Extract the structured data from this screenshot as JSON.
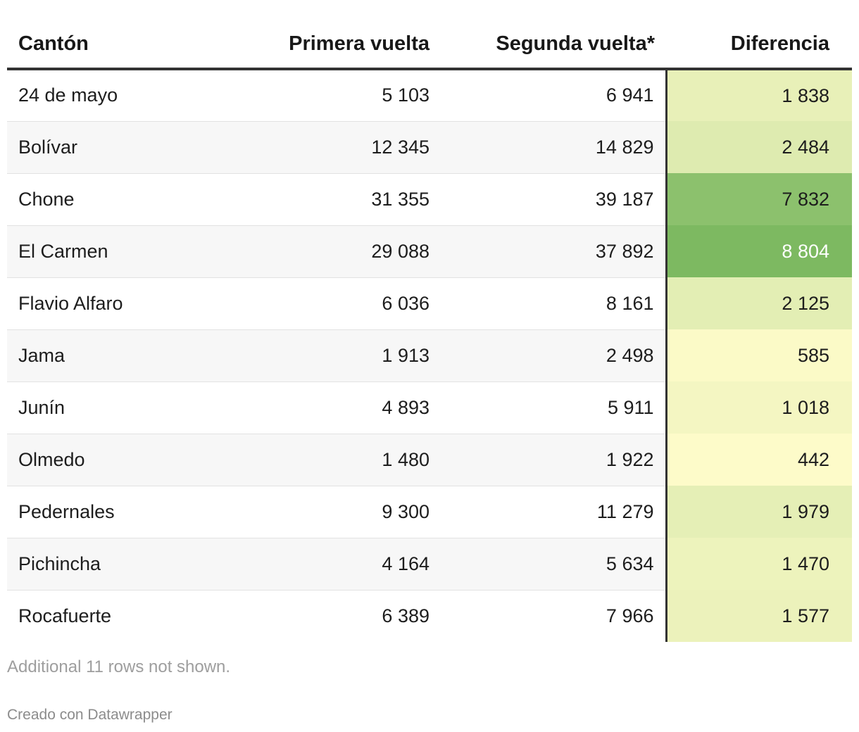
{
  "chart_data": {
    "type": "table",
    "columns": [
      "Cantón",
      "Primera vuelta",
      "Segunda vuelta*",
      "Diferencia"
    ],
    "rows": [
      {
        "canton": "24 de mayo",
        "primera": "5 103",
        "segunda": "6 941",
        "diferencia": "1 838",
        "diferencia_value": 1838
      },
      {
        "canton": "Bolívar",
        "primera": "12 345",
        "segunda": "14 829",
        "diferencia": "2 484",
        "diferencia_value": 2484
      },
      {
        "canton": "Chone",
        "primera": "31 355",
        "segunda": "39 187",
        "diferencia": "7 832",
        "diferencia_value": 7832
      },
      {
        "canton": "El Carmen",
        "primera": "29 088",
        "segunda": "37 892",
        "diferencia": "8 804",
        "diferencia_value": 8804
      },
      {
        "canton": "Flavio Alfaro",
        "primera": "6 036",
        "segunda": "8 161",
        "diferencia": "2 125",
        "diferencia_value": 2125
      },
      {
        "canton": "Jama",
        "primera": "1 913",
        "segunda": "2 498",
        "diferencia": "585",
        "diferencia_value": 585
      },
      {
        "canton": "Junín",
        "primera": "4 893",
        "segunda": "5 911",
        "diferencia": "1 018",
        "diferencia_value": 1018
      },
      {
        "canton": "Olmedo",
        "primera": "1 480",
        "segunda": "1 922",
        "diferencia": "442",
        "diferencia_value": 442
      },
      {
        "canton": "Pedernales",
        "primera": "9 300",
        "segunda": "11 279",
        "diferencia": "1 979",
        "diferencia_value": 1979
      },
      {
        "canton": "Pichincha",
        "primera": "4 164",
        "segunda": "5 634",
        "diferencia": "1 470",
        "diferencia_value": 1470
      },
      {
        "canton": "Rocafuerte",
        "primera": "6 389",
        "segunda": "7 966",
        "diferencia": "1 577",
        "diferencia_value": 1577
      }
    ],
    "heatmap_column": "Diferencia",
    "heatmap_colors": {
      "low": "#fdfbc9",
      "high": "#7db961"
    }
  },
  "footer": {
    "note": "Additional 11 rows not shown.",
    "credit": "Creado con Datawrapper"
  }
}
